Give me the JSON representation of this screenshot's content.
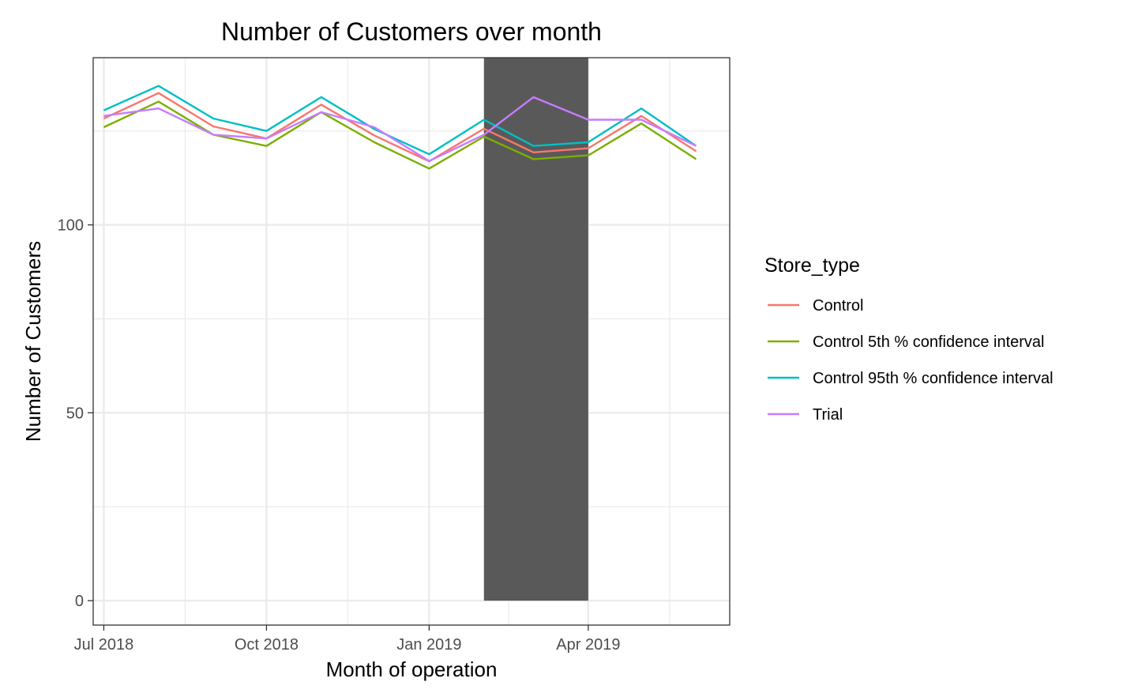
{
  "chart_data": {
    "type": "line",
    "title": "Number of Customers over month",
    "xlabel": "Month of operation",
    "ylabel": "Number of Customers",
    "x": [
      "2018-07",
      "2018-08",
      "2018-09",
      "2018-10",
      "2018-11",
      "2018-12",
      "2019-01",
      "2019-02",
      "2019-03",
      "2019-04",
      "2019-05",
      "2019-06"
    ],
    "x_tick_labels": [
      {
        "x": "2018-07",
        "label": "Jul 2018"
      },
      {
        "x": "2018-10",
        "label": "Oct 2018"
      },
      {
        "x": "2019-01",
        "label": "Jan 2019"
      },
      {
        "x": "2019-04",
        "label": "Apr 2019"
      }
    ],
    "xlim": [
      "2018-06-25",
      "2019-06-20"
    ],
    "y_ticks": [
      0,
      50,
      100
    ],
    "ylim": [
      -6.5,
      144.5
    ],
    "grid": true,
    "shaded_region": {
      "from": "2019-02-01",
      "to": "2019-04-01",
      "color": "#595959"
    },
    "legend": {
      "title": "Store_type",
      "placement": "right"
    },
    "series": [
      {
        "name": "Control",
        "color": "#F8766D",
        "values": [
          128.3,
          135.1,
          126.2,
          123.0,
          132.0,
          123.8,
          116.9,
          125.6,
          119.3,
          120.4,
          129.0,
          119.6
        ]
      },
      {
        "name": "Control 5th % confidence interval",
        "color": "#7CAE00",
        "values": [
          126.0,
          132.8,
          124.0,
          121.0,
          130.0,
          122.0,
          115.0,
          123.5,
          117.5,
          118.5,
          127.0,
          117.5
        ]
      },
      {
        "name": "Control 95th % confidence interval",
        "color": "#00BFC4",
        "values": [
          130.5,
          137.0,
          128.3,
          125.0,
          134.0,
          125.5,
          118.8,
          128.0,
          121.0,
          122.0,
          131.0,
          121.0
        ]
      },
      {
        "name": "Trial",
        "color": "#C77CFF",
        "values": [
          129.0,
          131.0,
          124.0,
          123.0,
          130.0,
          126.0,
          117.0,
          124.0,
          134.0,
          128.0,
          128.0,
          121.0
        ]
      }
    ]
  }
}
